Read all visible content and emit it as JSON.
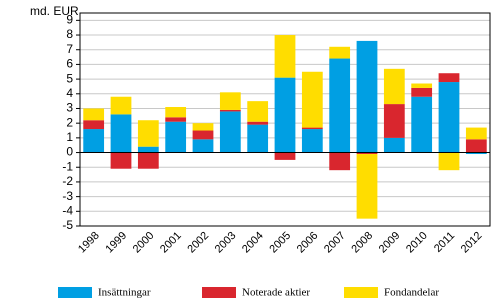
{
  "chart_data": {
    "type": "bar",
    "stacked": true,
    "y_label": "md. EUR",
    "categories": [
      "1998",
      "1999",
      "2000",
      "2001",
      "2002",
      "2003",
      "2004",
      "2005",
      "2006",
      "2007",
      "2008",
      "2009",
      "2010",
      "2011",
      "2012"
    ],
    "series": [
      {
        "name": "Insättningar",
        "color": "#009fe3",
        "values": [
          1.6,
          2.6,
          0.4,
          2.1,
          0.9,
          2.8,
          1.9,
          5.1,
          1.6,
          6.4,
          7.6,
          1.0,
          3.8,
          4.8,
          -0.1
        ]
      },
      {
        "name": "Noterade aktier",
        "color": "#d9262e",
        "values": [
          0.6,
          -1.1,
          -1.1,
          0.3,
          0.6,
          0.1,
          0.2,
          -0.5,
          0.1,
          -1.2,
          -0.1,
          2.3,
          0.6,
          0.6,
          0.9
        ]
      },
      {
        "name": "Fondandelar",
        "color": "#ffdd00",
        "values": [
          0.8,
          1.2,
          1.8,
          0.7,
          0.5,
          1.2,
          1.4,
          2.9,
          3.8,
          0.8,
          -4.4,
          2.4,
          0.3,
          -1.2,
          0.8
        ]
      }
    ],
    "ylim": [
      -5,
      9.5
    ],
    "yticks": [
      -5,
      -4,
      -3,
      -2,
      -1,
      0,
      1,
      2,
      3,
      4,
      5,
      6,
      7,
      8,
      9
    ],
    "grid": true,
    "legend": "bottom"
  }
}
